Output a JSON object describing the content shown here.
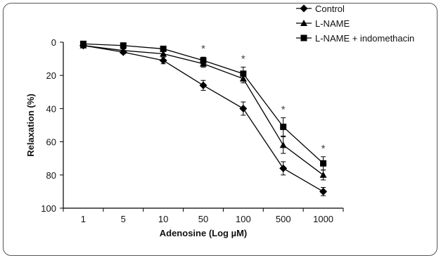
{
  "chart_data": {
    "type": "line",
    "xlabel": "Adenosine (Log µM)",
    "ylabel": "Relaxation (%)",
    "categories": [
      "1",
      "5",
      "10",
      "50",
      "100",
      "500",
      "1000"
    ],
    "ylim": [
      0,
      100
    ],
    "y_inverted": true,
    "yticks": [
      0,
      20,
      40,
      60,
      80,
      100
    ],
    "legend_position": "top-right",
    "grid": false,
    "series": [
      {
        "name": "Control",
        "marker": "diamond",
        "values": [
          2,
          6,
          11,
          26,
          40,
          76,
          90
        ],
        "errors": [
          1,
          1,
          2,
          3,
          4,
          4,
          2.5
        ]
      },
      {
        "name": "L-NAME",
        "marker": "triangle",
        "values": [
          2,
          5,
          7,
          13,
          22,
          62,
          80
        ],
        "errors": [
          1,
          1,
          1.5,
          2,
          2.5,
          5,
          3
        ]
      },
      {
        "name": "L-NAME + indomethacin",
        "marker": "square",
        "values": [
          1,
          2,
          4,
          11,
          19,
          51,
          73
        ],
        "errors": [
          1,
          1,
          1.5,
          2,
          4,
          5.5,
          4
        ]
      }
    ],
    "annotations": [
      {
        "text": "*",
        "category": "50"
      },
      {
        "text": "*",
        "category": "100"
      },
      {
        "text": "*",
        "category": "500"
      },
      {
        "text": "*",
        "category": "1000"
      }
    ]
  }
}
